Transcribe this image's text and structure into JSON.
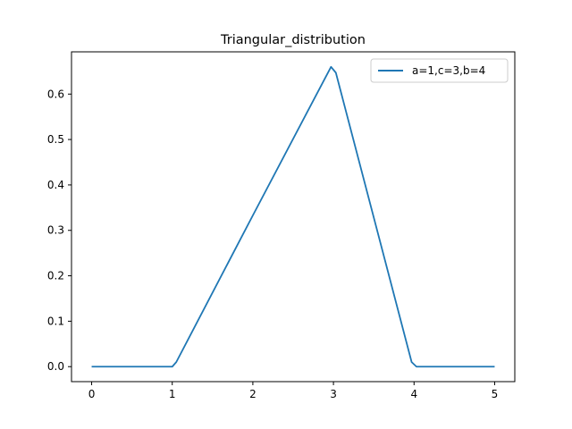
{
  "chart_data": {
    "type": "line",
    "title": "Triangular_distribution",
    "xlabel": "",
    "ylabel": "",
    "xlim": [
      -0.25,
      5.25
    ],
    "ylim": [
      -0.033,
      0.693
    ],
    "xticks": [
      0,
      1,
      2,
      3,
      4,
      5
    ],
    "yticks": [
      0.0,
      0.1,
      0.2,
      0.3,
      0.4,
      0.5,
      0.6
    ],
    "xtick_labels": [
      "0",
      "1",
      "2",
      "3",
      "4",
      "5"
    ],
    "ytick_labels": [
      "0.0",
      "0.1",
      "0.2",
      "0.3",
      "0.4",
      "0.5",
      "0.6"
    ],
    "grid": false,
    "legend_position": "top-right",
    "series": [
      {
        "name": "a=1,c=3,b=4",
        "color": "#1f77b4",
        "x": [
          0.0,
          0.95,
          1.0,
          1.05,
          2.0,
          2.97,
          3.03,
          3.97,
          4.03,
          5.0
        ],
        "y": [
          0.0,
          0.0,
          0.0,
          0.01,
          0.333,
          0.66,
          0.647,
          0.01,
          0.0,
          0.0
        ]
      }
    ]
  }
}
